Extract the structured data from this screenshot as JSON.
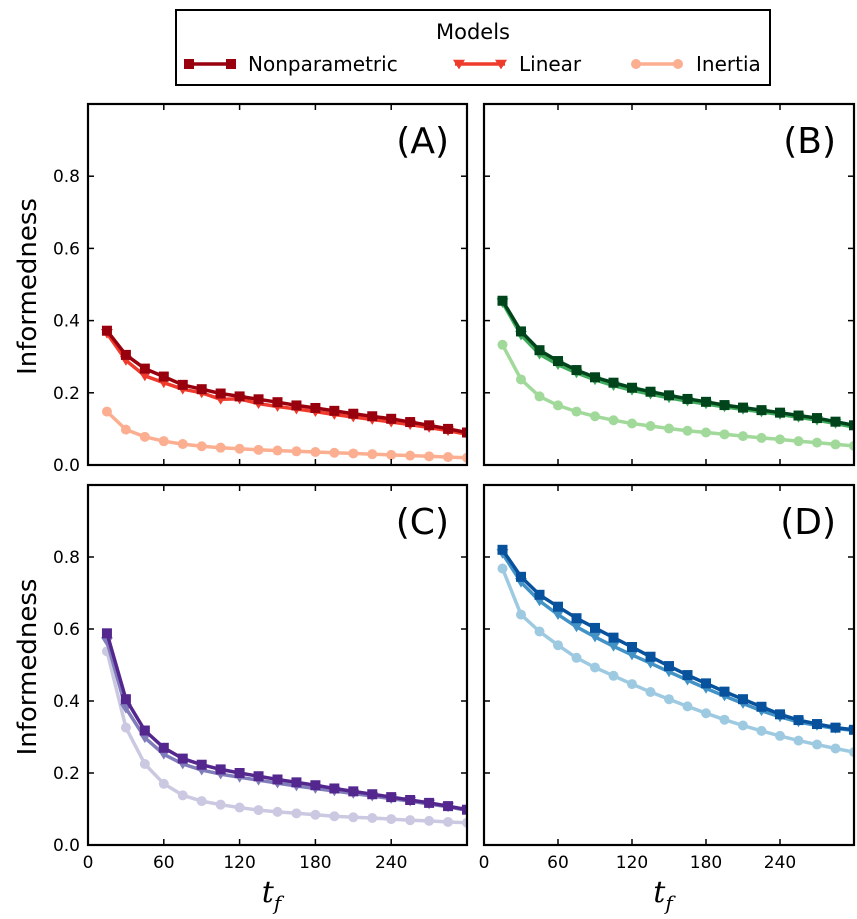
{
  "legend": {
    "title": "Models",
    "entries": [
      {
        "label": "Nonparametric",
        "marker": "square"
      },
      {
        "label": "Linear",
        "marker": "triangle-down"
      },
      {
        "label": "Inertia",
        "marker": "circle"
      }
    ],
    "placement": "top-center"
  },
  "axes": {
    "ylabel": "Informedness",
    "xlabel_main": "t",
    "xlabel_sub": "f",
    "xticks": [
      "0",
      "60",
      "120",
      "180",
      "240"
    ],
    "yticks": [
      "0.0",
      "0.2",
      "0.4",
      "0.6",
      "0.8"
    ]
  },
  "chart_data": [
    {
      "type": "line",
      "panel": "(A)",
      "xlim": [
        0,
        300
      ],
      "ylim": [
        0,
        1.0
      ],
      "x": [
        15,
        30,
        45,
        60,
        75,
        90,
        105,
        120,
        135,
        150,
        165,
        180,
        195,
        210,
        225,
        240,
        255,
        270,
        285,
        300
      ],
      "colors": [
        "#99000d",
        "#ef3b2c",
        "#fcae91"
      ],
      "series": [
        {
          "name": "Nonparametric",
          "values": [
            0.372,
            0.305,
            0.267,
            0.245,
            0.222,
            0.21,
            0.198,
            0.19,
            0.182,
            0.174,
            0.165,
            0.158,
            0.15,
            0.142,
            0.135,
            0.128,
            0.119,
            0.11,
            0.1,
            0.09
          ]
        },
        {
          "name": "Linear",
          "values": [
            0.365,
            0.29,
            0.247,
            0.228,
            0.21,
            0.2,
            0.182,
            0.183,
            0.17,
            0.162,
            0.155,
            0.148,
            0.14,
            0.133,
            0.126,
            0.119,
            0.112,
            0.104,
            0.095,
            0.085
          ]
        },
        {
          "name": "Inertia",
          "values": [
            0.148,
            0.098,
            0.078,
            0.066,
            0.058,
            0.052,
            0.048,
            0.045,
            0.042,
            0.04,
            0.038,
            0.036,
            0.034,
            0.032,
            0.03,
            0.028,
            0.026,
            0.024,
            0.022,
            0.02
          ]
        }
      ]
    },
    {
      "type": "line",
      "panel": "(B)",
      "xlim": [
        0,
        300
      ],
      "ylim": [
        0,
        1.0
      ],
      "x": [
        15,
        30,
        45,
        60,
        75,
        90,
        105,
        120,
        135,
        150,
        165,
        180,
        195,
        210,
        225,
        240,
        255,
        270,
        285,
        300
      ],
      "colors": [
        "#00441b",
        "#41ab5d",
        "#a1d99b"
      ],
      "series": [
        {
          "name": "Nonparametric",
          "values": [
            0.455,
            0.37,
            0.318,
            0.288,
            0.263,
            0.243,
            0.228,
            0.214,
            0.203,
            0.193,
            0.183,
            0.175,
            0.166,
            0.159,
            0.152,
            0.145,
            0.137,
            0.13,
            0.12,
            0.11
          ]
        },
        {
          "name": "Linear",
          "values": [
            0.45,
            0.36,
            0.307,
            0.278,
            0.255,
            0.236,
            0.22,
            0.207,
            0.196,
            0.186,
            0.177,
            0.169,
            0.161,
            0.154,
            0.147,
            0.14,
            0.132,
            0.124,
            0.115,
            0.105
          ]
        },
        {
          "name": "Inertia",
          "values": [
            0.333,
            0.237,
            0.19,
            0.165,
            0.148,
            0.135,
            0.124,
            0.115,
            0.108,
            0.101,
            0.095,
            0.09,
            0.085,
            0.08,
            0.075,
            0.071,
            0.066,
            0.062,
            0.057,
            0.053
          ]
        }
      ]
    },
    {
      "type": "line",
      "panel": "(C)",
      "xlim": [
        0,
        300
      ],
      "ylim": [
        0,
        1.0
      ],
      "x": [
        15,
        30,
        45,
        60,
        75,
        90,
        105,
        120,
        135,
        150,
        165,
        180,
        195,
        210,
        225,
        240,
        255,
        270,
        285,
        300
      ],
      "colors": [
        "#54278f",
        "#807dba",
        "#cbc9e2"
      ],
      "series": [
        {
          "name": "Nonparametric",
          "values": [
            0.588,
            0.405,
            0.318,
            0.27,
            0.24,
            0.223,
            0.21,
            0.2,
            0.191,
            0.182,
            0.174,
            0.166,
            0.157,
            0.149,
            0.141,
            0.133,
            0.125,
            0.117,
            0.108,
            0.098
          ]
        },
        {
          "name": "Linear",
          "values": [
            0.565,
            0.38,
            0.298,
            0.252,
            0.225,
            0.208,
            0.197,
            0.188,
            0.18,
            0.172,
            0.164,
            0.157,
            0.15,
            0.143,
            0.136,
            0.129,
            0.122,
            0.114,
            0.106,
            0.096
          ]
        },
        {
          "name": "Inertia",
          "values": [
            0.538,
            0.326,
            0.225,
            0.17,
            0.138,
            0.122,
            0.112,
            0.104,
            0.097,
            0.092,
            0.088,
            0.084,
            0.08,
            0.077,
            0.075,
            0.072,
            0.069,
            0.067,
            0.064,
            0.062
          ]
        }
      ]
    },
    {
      "type": "line",
      "panel": "(D)",
      "xlim": [
        0,
        300
      ],
      "ylim": [
        0,
        1.0
      ],
      "x": [
        15,
        30,
        45,
        60,
        75,
        90,
        105,
        120,
        135,
        150,
        165,
        180,
        195,
        210,
        225,
        240,
        255,
        270,
        285,
        300
      ],
      "colors": [
        "#08519c",
        "#4292c6",
        "#9ecae1"
      ],
      "series": [
        {
          "name": "Nonparametric",
          "values": [
            0.82,
            0.745,
            0.695,
            0.662,
            0.63,
            0.603,
            0.576,
            0.55,
            0.523,
            0.497,
            0.472,
            0.449,
            0.426,
            0.405,
            0.384,
            0.363,
            0.347,
            0.336,
            0.326,
            0.32
          ]
        },
        {
          "name": "Linear",
          "values": [
            0.81,
            0.73,
            0.678,
            0.64,
            0.606,
            0.578,
            0.552,
            0.528,
            0.505,
            0.481,
            0.458,
            0.435,
            0.414,
            0.393,
            0.373,
            0.356,
            0.342,
            0.332,
            0.324,
            0.318
          ]
        },
        {
          "name": "Inertia",
          "values": [
            0.768,
            0.64,
            0.593,
            0.555,
            0.52,
            0.493,
            0.47,
            0.447,
            0.425,
            0.405,
            0.385,
            0.366,
            0.348,
            0.332,
            0.317,
            0.303,
            0.29,
            0.279,
            0.268,
            0.258
          ]
        }
      ]
    }
  ]
}
